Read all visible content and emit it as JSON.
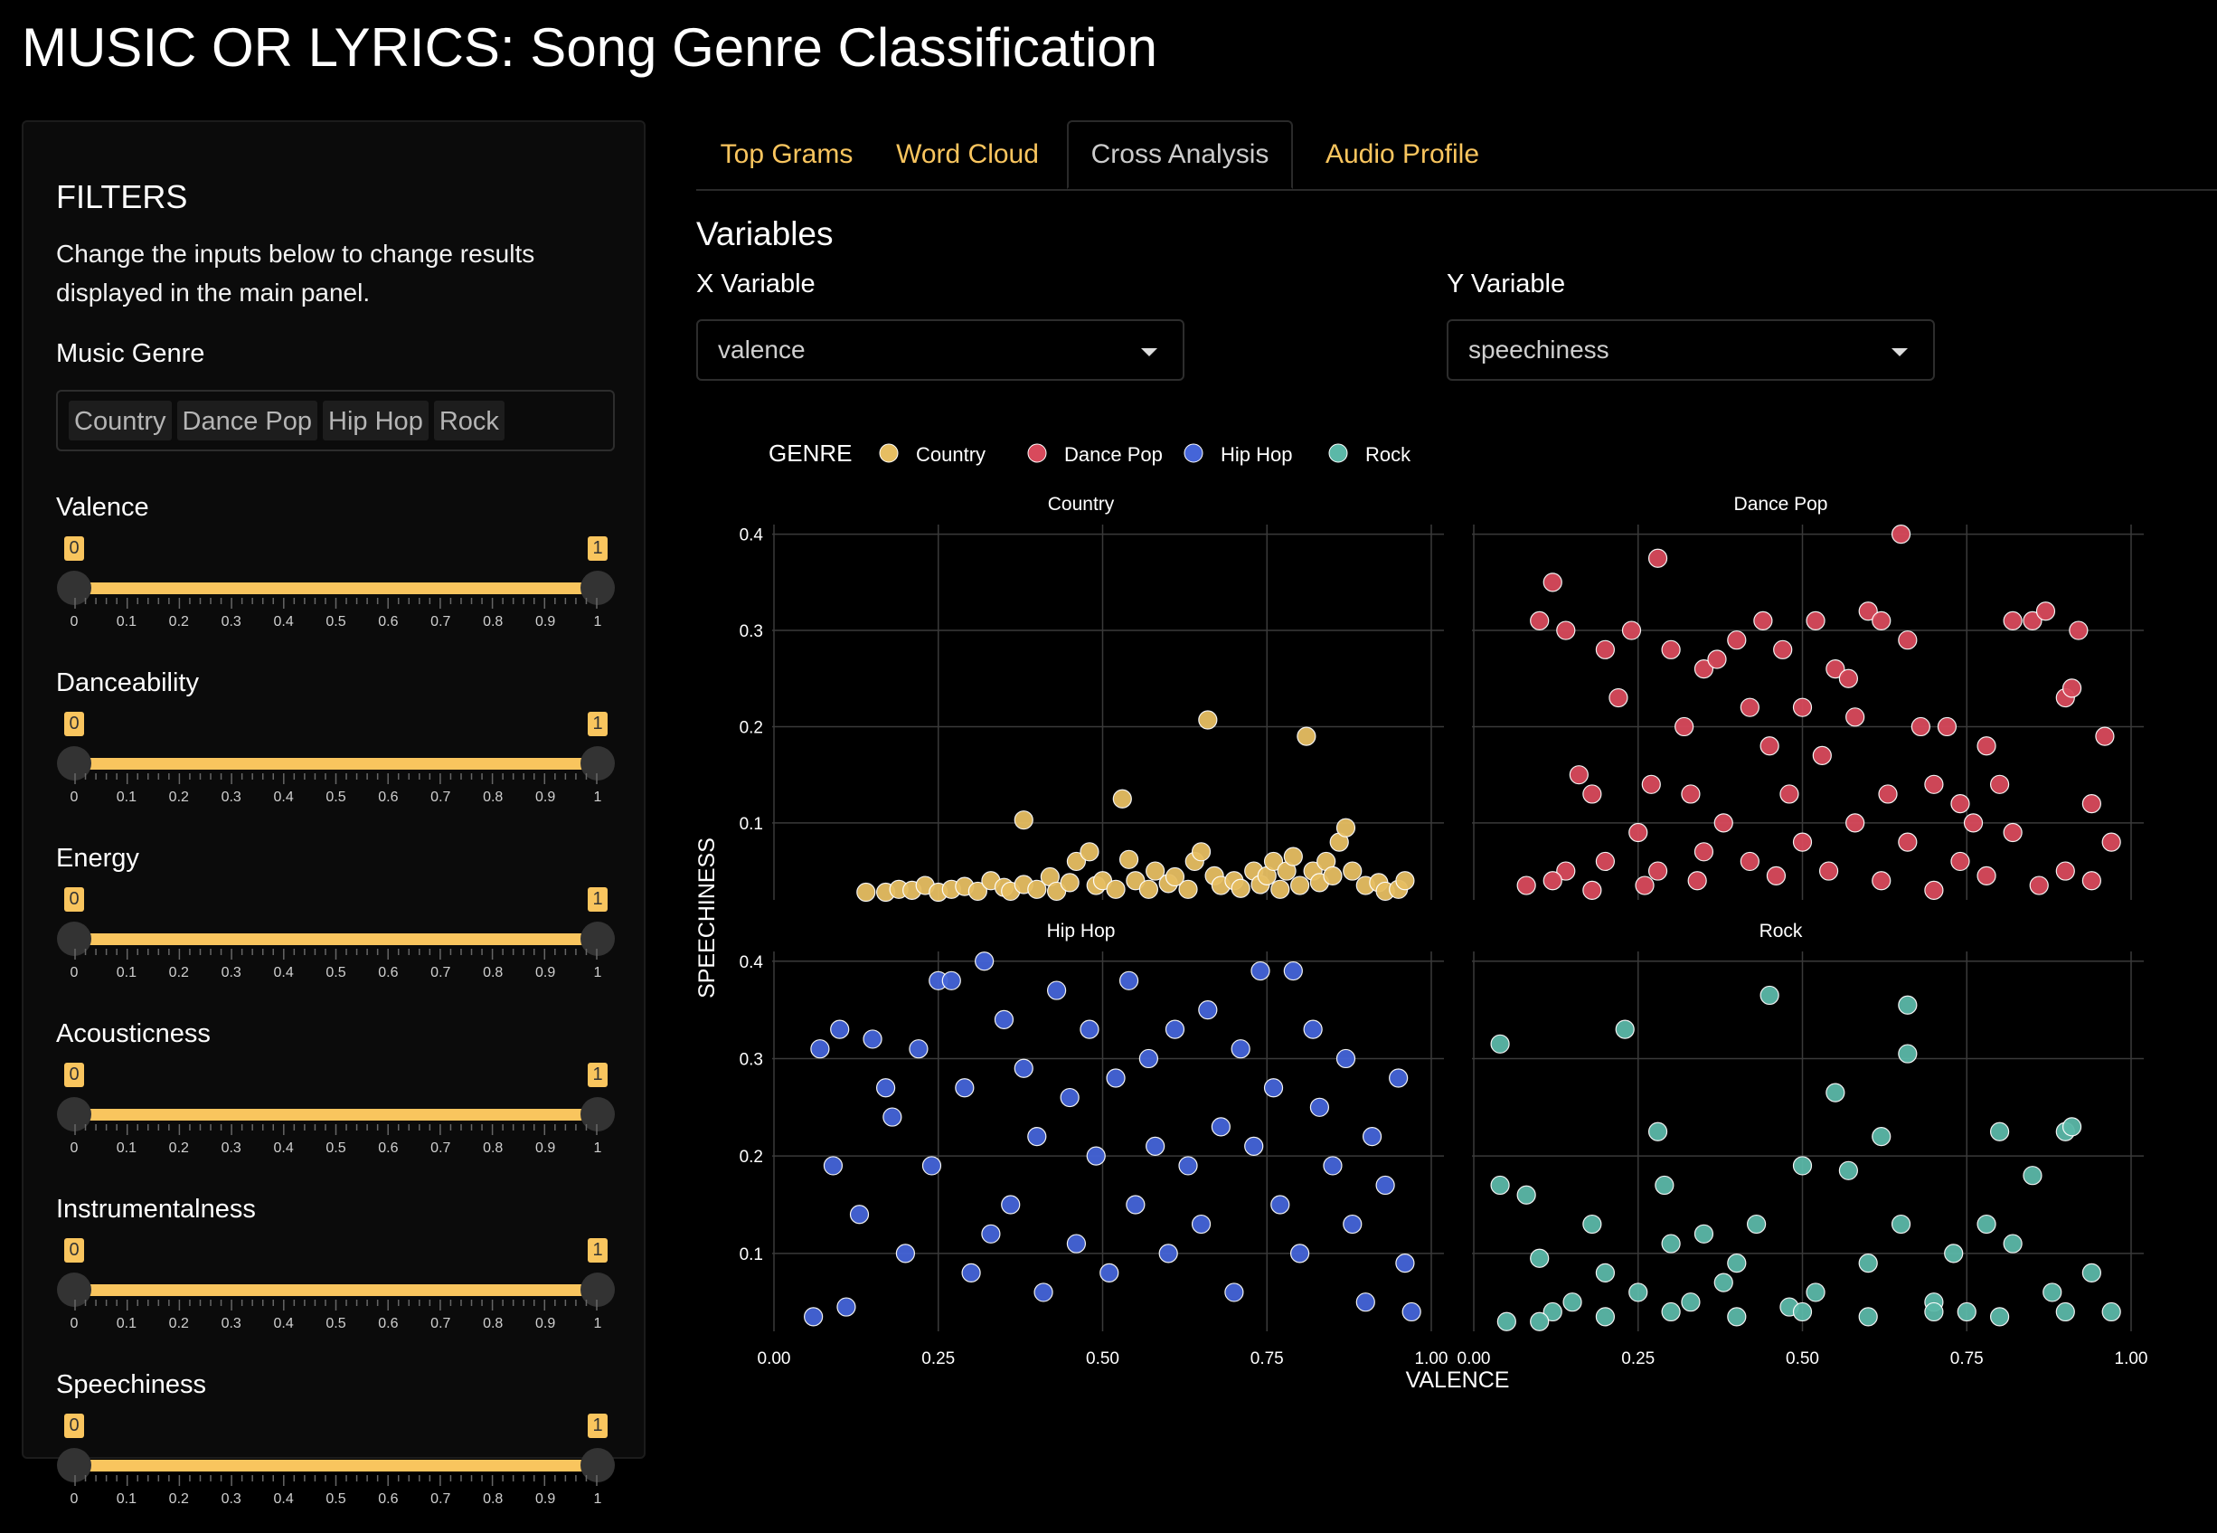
{
  "app": {
    "title": "MUSIC OR LYRICS: Song Genre Classification"
  },
  "sidebar": {
    "title": "FILTERS",
    "description": "Change the inputs below to change results displayed in the main panel.",
    "genre_label": "Music Genre",
    "genres": [
      "Country",
      "Dance Pop",
      "Hip Hop",
      "Rock"
    ],
    "sliders": [
      {
        "label": "Valence",
        "min": "0",
        "max": "1"
      },
      {
        "label": "Danceability",
        "min": "0",
        "max": "1"
      },
      {
        "label": "Energy",
        "min": "0",
        "max": "1"
      },
      {
        "label": "Acousticness",
        "min": "0",
        "max": "1"
      },
      {
        "label": "Instrumentalness",
        "min": "0",
        "max": "1"
      },
      {
        "label": "Speechiness",
        "min": "0",
        "max": "1"
      }
    ],
    "slider_ticks": [
      "0",
      "0.1",
      "0.2",
      "0.3",
      "0.4",
      "0.5",
      "0.6",
      "0.7",
      "0.8",
      "0.9",
      "1"
    ]
  },
  "tabs": [
    {
      "label": "Top Grams",
      "active": false
    },
    {
      "label": "Word Cloud",
      "active": false
    },
    {
      "label": "Cross Analysis",
      "active": true
    },
    {
      "label": "Audio Profile",
      "active": false
    }
  ],
  "variables": {
    "title": "Variables",
    "x_label": "X Variable",
    "x_value": "valence",
    "y_label": "Y Variable",
    "y_value": "speechiness"
  },
  "colors": {
    "accent": "#f9c55e",
    "Country": "#e6be62",
    "Dance Pop": "#d84a5c",
    "Hip Hop": "#4565d8",
    "Rock": "#5bb8a8"
  },
  "chart_data": {
    "type": "scatter",
    "legend_title": "GENRE",
    "legend_position": "top-left",
    "xlabel": "VALENCE",
    "ylabel": "SPEECHINESS",
    "xlim": [
      0,
      1
    ],
    "ylim": [
      0.02,
      0.41
    ],
    "x_ticks": [
      "0.00",
      "0.25",
      "0.50",
      "0.75",
      "1.00"
    ],
    "y_ticks": [
      "0.1",
      "0.2",
      "0.3",
      "0.4"
    ],
    "grid": true,
    "series": [
      {
        "name": "Country",
        "points": [
          [
            0.14,
            0.028
          ],
          [
            0.17,
            0.028
          ],
          [
            0.19,
            0.031
          ],
          [
            0.21,
            0.03
          ],
          [
            0.23,
            0.035
          ],
          [
            0.25,
            0.028
          ],
          [
            0.27,
            0.031
          ],
          [
            0.29,
            0.034
          ],
          [
            0.31,
            0.029
          ],
          [
            0.33,
            0.04
          ],
          [
            0.35,
            0.033
          ],
          [
            0.36,
            0.029
          ],
          [
            0.38,
            0.103
          ],
          [
            0.38,
            0.036
          ],
          [
            0.4,
            0.031
          ],
          [
            0.42,
            0.044
          ],
          [
            0.43,
            0.029
          ],
          [
            0.45,
            0.038
          ],
          [
            0.46,
            0.06
          ],
          [
            0.48,
            0.07
          ],
          [
            0.49,
            0.035
          ],
          [
            0.5,
            0.04
          ],
          [
            0.52,
            0.031
          ],
          [
            0.53,
            0.125
          ],
          [
            0.54,
            0.062
          ],
          [
            0.55,
            0.04
          ],
          [
            0.57,
            0.031
          ],
          [
            0.58,
            0.05
          ],
          [
            0.6,
            0.037
          ],
          [
            0.61,
            0.044
          ],
          [
            0.63,
            0.031
          ],
          [
            0.64,
            0.06
          ],
          [
            0.65,
            0.07
          ],
          [
            0.66,
            0.207
          ],
          [
            0.67,
            0.045
          ],
          [
            0.68,
            0.035
          ],
          [
            0.7,
            0.04
          ],
          [
            0.71,
            0.032
          ],
          [
            0.73,
            0.05
          ],
          [
            0.74,
            0.036
          ],
          [
            0.75,
            0.045
          ],
          [
            0.76,
            0.06
          ],
          [
            0.77,
            0.031
          ],
          [
            0.78,
            0.05
          ],
          [
            0.79,
            0.065
          ],
          [
            0.8,
            0.035
          ],
          [
            0.81,
            0.19
          ],
          [
            0.82,
            0.05
          ],
          [
            0.83,
            0.038
          ],
          [
            0.84,
            0.06
          ],
          [
            0.85,
            0.045
          ],
          [
            0.86,
            0.08
          ],
          [
            0.87,
            0.095
          ],
          [
            0.88,
            0.05
          ],
          [
            0.9,
            0.035
          ],
          [
            0.92,
            0.038
          ],
          [
            0.93,
            0.029
          ],
          [
            0.95,
            0.031
          ],
          [
            0.96,
            0.04
          ]
        ]
      },
      {
        "name": "Dance Pop",
        "points": [
          [
            0.08,
            0.035
          ],
          [
            0.1,
            0.31
          ],
          [
            0.12,
            0.35
          ],
          [
            0.14,
            0.3
          ],
          [
            0.14,
            0.05
          ],
          [
            0.16,
            0.15
          ],
          [
            0.18,
            0.13
          ],
          [
            0.2,
            0.28
          ],
          [
            0.22,
            0.23
          ],
          [
            0.24,
            0.3
          ],
          [
            0.25,
            0.09
          ],
          [
            0.27,
            0.14
          ],
          [
            0.28,
            0.375
          ],
          [
            0.3,
            0.28
          ],
          [
            0.32,
            0.2
          ],
          [
            0.33,
            0.13
          ],
          [
            0.35,
            0.26
          ],
          [
            0.37,
            0.27
          ],
          [
            0.38,
            0.1
          ],
          [
            0.4,
            0.29
          ],
          [
            0.42,
            0.22
          ],
          [
            0.44,
            0.31
          ],
          [
            0.45,
            0.18
          ],
          [
            0.47,
            0.28
          ],
          [
            0.48,
            0.13
          ],
          [
            0.5,
            0.22
          ],
          [
            0.52,
            0.31
          ],
          [
            0.53,
            0.17
          ],
          [
            0.55,
            0.26
          ],
          [
            0.57,
            0.25
          ],
          [
            0.58,
            0.21
          ],
          [
            0.6,
            0.32
          ],
          [
            0.62,
            0.31
          ],
          [
            0.63,
            0.13
          ],
          [
            0.65,
            0.4
          ],
          [
            0.66,
            0.29
          ],
          [
            0.68,
            0.2
          ],
          [
            0.7,
            0.14
          ],
          [
            0.72,
            0.2
          ],
          [
            0.74,
            0.12
          ],
          [
            0.76,
            0.1
          ],
          [
            0.78,
            0.18
          ],
          [
            0.8,
            0.14
          ],
          [
            0.82,
            0.31
          ],
          [
            0.85,
            0.31
          ],
          [
            0.87,
            0.32
          ],
          [
            0.9,
            0.23
          ],
          [
            0.91,
            0.24
          ],
          [
            0.92,
            0.3
          ],
          [
            0.94,
            0.12
          ],
          [
            0.96,
            0.19
          ],
          [
            0.97,
            0.08
          ],
          [
            0.12,
            0.04
          ],
          [
            0.2,
            0.06
          ],
          [
            0.28,
            0.05
          ],
          [
            0.35,
            0.07
          ],
          [
            0.42,
            0.06
          ],
          [
            0.5,
            0.08
          ],
          [
            0.58,
            0.1
          ],
          [
            0.66,
            0.08
          ],
          [
            0.74,
            0.06
          ],
          [
            0.82,
            0.09
          ],
          [
            0.9,
            0.05
          ],
          [
            0.18,
            0.03
          ],
          [
            0.26,
            0.035
          ],
          [
            0.34,
            0.04
          ],
          [
            0.46,
            0.045
          ],
          [
            0.54,
            0.05
          ],
          [
            0.62,
            0.04
          ],
          [
            0.7,
            0.03
          ],
          [
            0.78,
            0.045
          ],
          [
            0.86,
            0.035
          ],
          [
            0.94,
            0.04
          ]
        ]
      },
      {
        "name": "Hip Hop",
        "points": [
          [
            0.06,
            0.035
          ],
          [
            0.07,
            0.31
          ],
          [
            0.09,
            0.19
          ],
          [
            0.1,
            0.33
          ],
          [
            0.11,
            0.045
          ],
          [
            0.13,
            0.14
          ],
          [
            0.15,
            0.32
          ],
          [
            0.17,
            0.27
          ],
          [
            0.18,
            0.24
          ],
          [
            0.2,
            0.1
          ],
          [
            0.22,
            0.31
          ],
          [
            0.24,
            0.19
          ],
          [
            0.25,
            0.38
          ],
          [
            0.27,
            0.38
          ],
          [
            0.29,
            0.27
          ],
          [
            0.3,
            0.08
          ],
          [
            0.32,
            0.4
          ],
          [
            0.33,
            0.12
          ],
          [
            0.35,
            0.34
          ],
          [
            0.36,
            0.15
          ],
          [
            0.38,
            0.29
          ],
          [
            0.4,
            0.22
          ],
          [
            0.41,
            0.06
          ],
          [
            0.43,
            0.37
          ],
          [
            0.45,
            0.26
          ],
          [
            0.46,
            0.11
          ],
          [
            0.48,
            0.33
          ],
          [
            0.49,
            0.2
          ],
          [
            0.51,
            0.08
          ],
          [
            0.52,
            0.28
          ],
          [
            0.54,
            0.38
          ],
          [
            0.55,
            0.15
          ],
          [
            0.57,
            0.3
          ],
          [
            0.58,
            0.21
          ],
          [
            0.6,
            0.1
          ],
          [
            0.61,
            0.33
          ],
          [
            0.63,
            0.19
          ],
          [
            0.65,
            0.13
          ],
          [
            0.66,
            0.35
          ],
          [
            0.68,
            0.23
          ],
          [
            0.7,
            0.06
          ],
          [
            0.71,
            0.31
          ],
          [
            0.73,
            0.21
          ],
          [
            0.74,
            0.39
          ],
          [
            0.76,
            0.27
          ],
          [
            0.77,
            0.15
          ],
          [
            0.79,
            0.39
          ],
          [
            0.8,
            0.1
          ],
          [
            0.82,
            0.33
          ],
          [
            0.83,
            0.25
          ],
          [
            0.85,
            0.19
          ],
          [
            0.87,
            0.3
          ],
          [
            0.88,
            0.13
          ],
          [
            0.9,
            0.05
          ],
          [
            0.91,
            0.22
          ],
          [
            0.93,
            0.17
          ],
          [
            0.95,
            0.28
          ],
          [
            0.96,
            0.09
          ],
          [
            0.97,
            0.04
          ]
        ]
      },
      {
        "name": "Rock",
        "points": [
          [
            0.04,
            0.315
          ],
          [
            0.04,
            0.17
          ],
          [
            0.05,
            0.03
          ],
          [
            0.08,
            0.16
          ],
          [
            0.1,
            0.095
          ],
          [
            0.12,
            0.04
          ],
          [
            0.15,
            0.05
          ],
          [
            0.18,
            0.13
          ],
          [
            0.2,
            0.08
          ],
          [
            0.23,
            0.33
          ],
          [
            0.25,
            0.06
          ],
          [
            0.28,
            0.225
          ],
          [
            0.29,
            0.17
          ],
          [
            0.3,
            0.11
          ],
          [
            0.33,
            0.05
          ],
          [
            0.35,
            0.12
          ],
          [
            0.38,
            0.07
          ],
          [
            0.4,
            0.09
          ],
          [
            0.43,
            0.13
          ],
          [
            0.45,
            0.365
          ],
          [
            0.48,
            0.045
          ],
          [
            0.5,
            0.19
          ],
          [
            0.52,
            0.06
          ],
          [
            0.55,
            0.265
          ],
          [
            0.57,
            0.185
          ],
          [
            0.6,
            0.09
          ],
          [
            0.62,
            0.22
          ],
          [
            0.65,
            0.13
          ],
          [
            0.66,
            0.355
          ],
          [
            0.66,
            0.305
          ],
          [
            0.7,
            0.05
          ],
          [
            0.73,
            0.1
          ],
          [
            0.75,
            0.04
          ],
          [
            0.78,
            0.13
          ],
          [
            0.8,
            0.225
          ],
          [
            0.82,
            0.11
          ],
          [
            0.85,
            0.18
          ],
          [
            0.88,
            0.06
          ],
          [
            0.9,
            0.225
          ],
          [
            0.91,
            0.23
          ],
          [
            0.94,
            0.08
          ],
          [
            0.97,
            0.04
          ],
          [
            0.1,
            0.03
          ],
          [
            0.2,
            0.035
          ],
          [
            0.3,
            0.04
          ],
          [
            0.4,
            0.035
          ],
          [
            0.5,
            0.04
          ],
          [
            0.6,
            0.035
          ],
          [
            0.7,
            0.04
          ],
          [
            0.8,
            0.035
          ],
          [
            0.9,
            0.04
          ]
        ]
      }
    ]
  }
}
